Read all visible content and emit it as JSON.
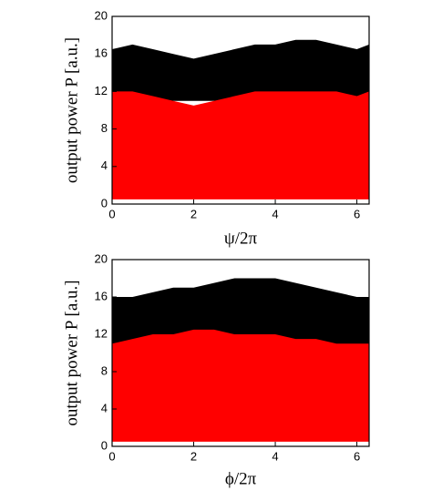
{
  "chart_data": [
    {
      "type": "band",
      "xlabel": "ψ/2π",
      "ylabel": "output power P [a.u.]",
      "xlim": [
        0,
        6.3
      ],
      "ylim": [
        0,
        20
      ],
      "xticks": [
        0,
        2,
        4,
        6
      ],
      "yticks": [
        0,
        4,
        8,
        12,
        16,
        20
      ],
      "x": [
        0,
        0.5,
        1,
        1.5,
        2,
        2.5,
        3,
        3.5,
        4,
        4.5,
        5,
        5.5,
        6,
        6.3
      ],
      "series": [
        {
          "color": "#000000",
          "upper": [
            16.5,
            17,
            16.5,
            16,
            15.5,
            16,
            16.5,
            17,
            17,
            17.5,
            17.5,
            17,
            16.5,
            17
          ],
          "lower": [
            11,
            10.5,
            10.5,
            11,
            11,
            11,
            10.5,
            10.5,
            10.5,
            10.5,
            10.5,
            10.5,
            11,
            11
          ]
        },
        {
          "color": "#ff0000",
          "upper": [
            12,
            12,
            11.5,
            11,
            10.5,
            11,
            11.5,
            12,
            12,
            12,
            12,
            12,
            11.5,
            12
          ],
          "lower": [
            0.5,
            0.5,
            0.5,
            0.5,
            0.5,
            0.5,
            0.5,
            0.5,
            0.5,
            0.5,
            0.5,
            0.5,
            0.5,
            0.5
          ]
        }
      ]
    },
    {
      "type": "band",
      "xlabel": "ϕ/2π",
      "ylabel": "output power P [a.u.]",
      "xlim": [
        0,
        6.3
      ],
      "ylim": [
        0,
        20
      ],
      "xticks": [
        0,
        2,
        4,
        6
      ],
      "yticks": [
        0,
        4,
        8,
        12,
        16,
        20
      ],
      "x": [
        0,
        0.5,
        1,
        1.5,
        2,
        2.5,
        3,
        3.5,
        4,
        4.5,
        5,
        5.5,
        6,
        6.3
      ],
      "series": [
        {
          "color": "#000000",
          "upper": [
            16,
            16,
            16.5,
            17,
            17,
            17.5,
            18,
            18,
            18,
            17.5,
            17,
            16.5,
            16,
            16
          ],
          "lower": [
            10,
            10,
            10,
            10,
            10,
            10,
            10,
            10,
            10,
            10,
            10,
            10,
            10,
            10
          ]
        },
        {
          "color": "#ff0000",
          "upper": [
            11,
            11.5,
            12,
            12,
            12.5,
            12.5,
            12,
            12,
            12,
            11.5,
            11.5,
            11,
            11,
            11
          ],
          "lower": [
            0.5,
            0.5,
            0.5,
            0.5,
            0.5,
            0.5,
            0.5,
            0.5,
            0.5,
            0.5,
            0.5,
            0.5,
            0.5,
            0.5
          ]
        }
      ]
    }
  ]
}
